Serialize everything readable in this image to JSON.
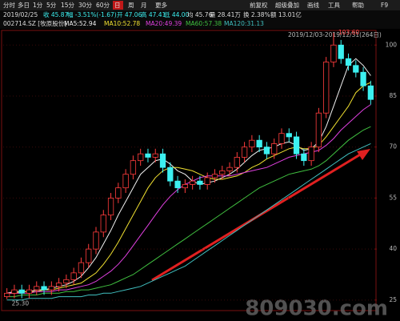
{
  "toolbar": {
    "left": [
      "分时",
      "多日",
      "1分",
      "5分",
      "15分",
      "30分",
      "60分",
      "日",
      "周",
      "月",
      "更多"
    ],
    "active": 7,
    "right": [
      "前复权",
      "超级叠加",
      "画线",
      "工具",
      "帮助",
      "F9"
    ]
  },
  "info": [
    "2019/02/25",
    "收 45.87",
    "幅 -3.51%(-1.67)",
    "开 47.06",
    "高 47.41",
    "低 44.00",
    "均 45.76",
    "量 28.41万",
    "换 2.38%",
    "额 13.01亿"
  ],
  "stock": "002714.SZ [牧原股份]",
  "date_range": "2019/12/03-2019/12/31(264日)",
  "watermark": "809030.com",
  "chart_data": {
    "type": "candlestick",
    "categories": [
      null,
      null,
      null,
      null,
      null,
      null,
      null,
      null,
      null,
      null,
      null,
      null,
      null,
      null,
      null,
      null,
      null,
      null,
      null,
      null,
      null,
      null,
      null,
      null,
      null,
      null,
      null,
      null,
      null,
      null,
      null,
      null,
      null,
      null,
      null,
      null,
      null,
      null,
      null,
      null,
      null,
      null,
      null,
      null,
      null,
      null,
      null,
      null,
      null,
      null
    ],
    "open": [
      26,
      27,
      28,
      27,
      28,
      29,
      28,
      29,
      30,
      31,
      33,
      36,
      40,
      45,
      50,
      55,
      58,
      62,
      66,
      68,
      67,
      68,
      64,
      60,
      58,
      59,
      60,
      59,
      61,
      62,
      63,
      64,
      67,
      70,
      72,
      70,
      68,
      71,
      74,
      73,
      68,
      66,
      70,
      80,
      95,
      100,
      96,
      94,
      92,
      88
    ],
    "high": [
      28.5,
      29.5,
      29.5,
      29.5,
      30.5,
      30.5,
      30.5,
      31.5,
      32.5,
      34.5,
      37.5,
      41.5,
      46.5,
      51.5,
      56.5,
      59.5,
      63.5,
      67.5,
      69.5,
      69.5,
      69.5,
      69.5,
      65.5,
      61.5,
      60.5,
      61.5,
      61.5,
      62.5,
      63.5,
      64.5,
      65.5,
      68.5,
      71.5,
      73.5,
      73.5,
      71.5,
      72.5,
      75.5,
      75.5,
      74.5,
      69.5,
      71.5,
      81.5,
      96.5,
      103.6,
      101.5,
      97.5,
      95.5,
      93.5,
      89.5
    ],
    "low": [
      25.3,
      25.5,
      25.5,
      25.5,
      26.5,
      26.5,
      26.5,
      27.5,
      28.5,
      29.5,
      31.5,
      34.5,
      38.5,
      43.5,
      48.5,
      53.5,
      56.5,
      60.5,
      64.5,
      65.5,
      65.5,
      62.5,
      58.5,
      56.5,
      56.5,
      57.5,
      57.5,
      57.5,
      59.5,
      60.5,
      61.5,
      62.5,
      65.5,
      68.5,
      68.5,
      66.5,
      66.5,
      69.5,
      71.5,
      66.5,
      64.5,
      64.5,
      68.5,
      78.5,
      93.5,
      94.5,
      92.5,
      90.5,
      86.5,
      82.5
    ],
    "close": [
      27,
      28,
      27,
      28,
      29,
      28,
      29,
      30,
      31,
      33,
      36,
      40,
      45,
      50,
      55,
      58,
      62,
      66,
      68,
      67,
      68,
      64,
      60,
      58,
      59,
      60,
      59,
      61,
      62,
      63,
      64,
      67,
      70,
      72,
      70,
      68,
      71,
      74,
      73,
      68,
      66,
      70,
      80,
      95,
      100,
      96,
      94,
      92,
      88,
      84
    ],
    "up_color": "#ff3c3c",
    "down_color": "#3cf0f0",
    "series": [
      {
        "name": "MA5:52.94",
        "color": "#f0f0f0",
        "values": [
          27,
          27.5,
          27.5,
          27.5,
          28,
          28,
          28.5,
          29,
          29.5,
          30.5,
          32,
          34.5,
          37.5,
          41.5,
          45.5,
          50,
          54,
          58,
          62,
          64,
          66,
          66.5,
          65,
          63,
          62,
          60,
          59,
          59.5,
          60,
          61,
          62,
          63.5,
          65.5,
          67.5,
          69,
          69.5,
          70,
          71,
          71.5,
          70.5,
          69,
          69.5,
          71.5,
          76,
          82,
          88,
          94,
          96,
          94,
          91
        ]
      },
      {
        "name": "MA10:52.78",
        "color": "#f0e030",
        "values": [
          27,
          27,
          27.5,
          27.5,
          27.5,
          28,
          28,
          28.5,
          29,
          29.5,
          30,
          31.5,
          33,
          35.5,
          38.5,
          42,
          46,
          50,
          54,
          58,
          61,
          63,
          64,
          64,
          63.5,
          63,
          62,
          61,
          60.5,
          60.5,
          61,
          61.5,
          62.5,
          64,
          65,
          66.5,
          67.5,
          68.5,
          69.5,
          70,
          69.5,
          69.5,
          70.5,
          73,
          76,
          79,
          82,
          86,
          88,
          89
        ]
      },
      {
        "name": "MA20:49.39",
        "color": "#e040e0",
        "values": [
          27,
          27,
          27,
          27,
          27.5,
          27.5,
          27.5,
          28,
          28,
          28.5,
          29,
          29.5,
          30.5,
          32,
          33.5,
          35.5,
          38,
          41,
          44,
          47,
          50,
          53,
          55.5,
          57.5,
          59,
          60,
          61,
          61.5,
          61.5,
          61.5,
          61.5,
          62,
          62.5,
          63,
          63.5,
          64,
          65,
          66,
          67,
          67.5,
          68,
          68.5,
          69,
          70.5,
          72.5,
          75,
          77,
          79,
          81,
          82.5
        ]
      },
      {
        "name": "MA60:57.38",
        "color": "#40c040",
        "values": [
          26,
          26,
          26.5,
          26.5,
          26.5,
          27,
          27,
          27,
          27.5,
          27.5,
          28,
          28,
          28.5,
          29,
          29.5,
          30.5,
          31.5,
          32.5,
          34,
          35.5,
          37,
          38.5,
          40,
          41.5,
          43,
          44.5,
          46,
          47.5,
          49,
          50.5,
          52,
          53.5,
          55,
          56.5,
          58,
          59,
          60,
          61,
          62,
          62.5,
          63,
          63.5,
          64.5,
          66,
          68,
          70,
          72,
          73.5,
          75,
          76
        ]
      },
      {
        "name": "MA120:31.13",
        "color": "#40c0c0",
        "values": [
          25,
          25,
          25,
          25.5,
          25.5,
          25.5,
          25.5,
          26,
          26,
          26,
          26,
          26.5,
          26.5,
          27,
          27,
          27.5,
          28,
          28.5,
          29,
          30,
          31,
          32,
          33,
          34,
          35,
          36.5,
          38,
          39.5,
          41,
          42.5,
          44,
          45.5,
          47,
          48.5,
          50,
          51.5,
          53,
          54.5,
          56,
          57.5,
          59,
          60.5,
          62,
          63.5,
          65,
          66.5,
          68,
          69,
          70,
          71
        ]
      }
    ],
    "ylim": [
      21.9,
      104.3
    ],
    "yticks": [
      25,
      40,
      55,
      70,
      85,
      100
    ],
    "grid": true,
    "annotations": [
      {
        "text": "103.60",
        "at": 44
      },
      {
        "text": "25.30",
        "at": 0
      }
    ]
  }
}
